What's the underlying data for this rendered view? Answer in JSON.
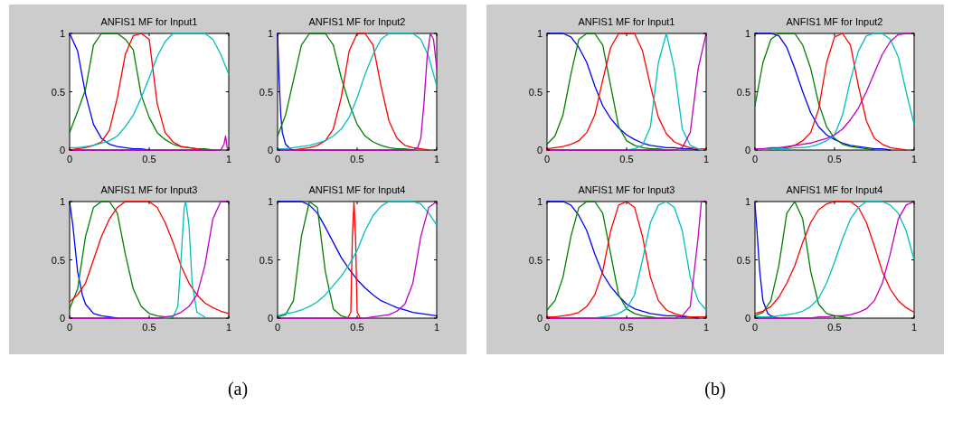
{
  "chart_data": [
    {
      "type": "line",
      "title": "ANFIS1 MF for Input1",
      "annotations": [
        "(a)"
      ],
      "xlim": [
        0,
        1
      ],
      "ylim": [
        0,
        1
      ],
      "xticks": [
        0,
        0.5,
        1
      ],
      "yticks": [
        0,
        0.5,
        1
      ],
      "x": [
        0,
        0.05,
        0.1,
        0.15,
        0.2,
        0.25,
        0.3,
        0.35,
        0.4,
        0.45,
        0.5,
        0.55,
        0.6,
        0.65,
        0.7,
        0.75,
        0.8,
        0.85,
        0.9,
        0.95,
        1
      ],
      "series": [
        {
          "color": "#0000ff",
          "values": [
            1,
            0.85,
            0.48,
            0.22,
            0.1,
            0.05,
            0.03,
            0.02,
            0.01,
            0.01,
            0,
            null,
            null,
            null,
            null,
            null,
            null,
            null,
            null,
            null,
            null
          ]
        },
        {
          "color": "#008000",
          "values": [
            0.15,
            0.33,
            0.52,
            0.9,
            1,
            1,
            1,
            0.95,
            0.86,
            0.47,
            0.28,
            0.15,
            0.09,
            0.05,
            0.03,
            0.02,
            0.01,
            0.01,
            0,
            null,
            null
          ]
        },
        {
          "color": "#ff0000",
          "values": [
            0,
            0.01,
            0.02,
            0.04,
            0.07,
            0.17,
            0.45,
            0.82,
            0.98,
            1,
            0.95,
            0.4,
            0.15,
            0.07,
            0.03,
            0.02,
            0.01,
            0,
            null,
            null,
            null
          ]
        },
        {
          "color": "#00bfbf",
          "values": [
            0.02,
            0.02,
            0.03,
            0.04,
            0.06,
            0.08,
            0.12,
            0.2,
            0.3,
            0.45,
            0.62,
            0.8,
            0.93,
            1,
            1,
            1,
            1,
            1,
            0.95,
            0.82,
            0.65
          ]
        },
        {
          "color": "#bf00bf",
          "x": [
            0,
            0.95,
            0.97,
            0.98,
            0.99,
            1
          ],
          "values": [
            0,
            0,
            0.05,
            0.12,
            0.02,
            0
          ]
        }
      ]
    },
    {
      "type": "line",
      "title": "ANFIS1 MF for Input2",
      "xlim": [
        0,
        1
      ],
      "ylim": [
        0,
        1
      ],
      "xticks": [
        0,
        0.5,
        1
      ],
      "yticks": [
        0,
        0.5,
        1
      ],
      "x": [
        0,
        0.05,
        0.1,
        0.15,
        0.2,
        0.25,
        0.3,
        0.35,
        0.4,
        0.45,
        0.5,
        0.55,
        0.6,
        0.65,
        0.7,
        0.75,
        0.8,
        0.85,
        0.9,
        0.95,
        1
      ],
      "series": [
        {
          "color": "#0000ff",
          "x": [
            0,
            0.01,
            0.02,
            0.03,
            0.05,
            0.08,
            0.1
          ],
          "values": [
            1,
            0.6,
            0.3,
            0.15,
            0.05,
            0.01,
            0
          ]
        },
        {
          "color": "#008000",
          "values": [
            0.12,
            0.3,
            0.6,
            0.9,
            1,
            1,
            1,
            0.9,
            0.62,
            0.4,
            0.22,
            0.12,
            0.07,
            0.04,
            0.02,
            0.01,
            0.01,
            0,
            null,
            null,
            null
          ]
        },
        {
          "color": "#ff0000",
          "values": [
            null,
            null,
            0,
            0.01,
            0.02,
            0.04,
            0.08,
            0.18,
            0.45,
            0.85,
            1,
            1,
            0.9,
            0.55,
            0.25,
            0.1,
            0.04,
            0.02,
            0.01,
            0,
            null
          ]
        },
        {
          "color": "#00bfbf",
          "values": [
            0.01,
            0.01,
            0.02,
            0.03,
            0.04,
            0.06,
            0.08,
            0.12,
            0.18,
            0.28,
            0.45,
            0.65,
            0.82,
            0.95,
            1,
            1,
            1,
            1,
            0.95,
            0.8,
            0.55
          ]
        },
        {
          "color": "#bf00bf",
          "x": [
            0,
            0.85,
            0.88,
            0.9,
            0.92,
            0.94,
            0.96,
            0.98,
            1
          ],
          "values": [
            0,
            0,
            0.02,
            0.1,
            0.4,
            0.8,
            1,
            0.95,
            0.7
          ]
        }
      ]
    },
    {
      "type": "line",
      "title": "ANFIS1 MF for Input3",
      "xlim": [
        0,
        1
      ],
      "ylim": [
        0,
        1
      ],
      "xticks": [
        0,
        0.5,
        1
      ],
      "yticks": [
        0,
        0.5,
        1
      ],
      "x": [
        0,
        0.05,
        0.1,
        0.15,
        0.2,
        0.25,
        0.3,
        0.35,
        0.4,
        0.45,
        0.5,
        0.55,
        0.6,
        0.65,
        0.7,
        0.75,
        0.8,
        0.85,
        0.9,
        0.95,
        1
      ],
      "series": [
        {
          "color": "#0000ff",
          "x": [
            0,
            0.02,
            0.05,
            0.08,
            0.1,
            0.15,
            0.2,
            0.25,
            0.3
          ],
          "values": [
            1,
            0.8,
            0.4,
            0.2,
            0.12,
            0.04,
            0.02,
            0.01,
            0
          ]
        },
        {
          "color": "#008000",
          "values": [
            0.08,
            0.25,
            0.7,
            0.95,
            1,
            1,
            0.9,
            0.55,
            0.25,
            0.1,
            0.04,
            0.02,
            0.01,
            0,
            null,
            null,
            null,
            null,
            null,
            null,
            null
          ]
        },
        {
          "color": "#ff0000",
          "values": [
            0.14,
            0.2,
            0.3,
            0.5,
            0.7,
            0.85,
            0.95,
            1,
            1,
            1,
            1,
            0.95,
            0.82,
            0.65,
            0.45,
            0.3,
            0.2,
            0.13,
            0.09,
            0.06,
            0.04
          ]
        },
        {
          "color": "#00bfbf",
          "x": [
            0.6,
            0.65,
            0.68,
            0.7,
            0.72,
            0.73,
            0.75,
            0.77,
            0.8,
            0.85
          ],
          "values": [
            0,
            0.01,
            0.1,
            0.5,
            0.95,
            1,
            0.8,
            0.3,
            0.05,
            0.01
          ]
        },
        {
          "color": "#bf00bf",
          "values": [
            0,
            0,
            0,
            0,
            0,
            0,
            0,
            0,
            0,
            0,
            0,
            0,
            0.01,
            0.02,
            0.05,
            0.1,
            0.2,
            0.45,
            0.85,
            1,
            1
          ]
        }
      ]
    },
    {
      "type": "line",
      "title": "ANFIS1 MF for Input4",
      "xlim": [
        0,
        1
      ],
      "ylim": [
        0,
        1
      ],
      "xticks": [
        0,
        0.5,
        1
      ],
      "yticks": [
        0,
        0.5,
        1
      ],
      "x": [
        0,
        0.05,
        0.1,
        0.15,
        0.2,
        0.25,
        0.3,
        0.35,
        0.4,
        0.45,
        0.5,
        0.55,
        0.6,
        0.65,
        0.7,
        0.75,
        0.8,
        0.85,
        0.9,
        0.95,
        1
      ],
      "series": [
        {
          "color": "#0000ff",
          "values": [
            1,
            1,
            1,
            1,
            0.97,
            0.9,
            0.78,
            0.65,
            0.52,
            0.42,
            0.33,
            0.26,
            0.2,
            0.15,
            0.12,
            0.09,
            0.07,
            0.05,
            0.04,
            0.03,
            0.02
          ]
        },
        {
          "color": "#008000",
          "values": [
            0.01,
            0.03,
            0.15,
            0.7,
            1,
            0.95,
            0.4,
            0.08,
            0.02,
            0,
            null,
            null,
            null,
            null,
            null,
            null,
            null,
            null,
            null,
            null,
            null
          ]
        },
        {
          "color": "#ff0000",
          "x": [
            0.44,
            0.46,
            0.47,
            0.48,
            0.49,
            0.5,
            0.52
          ],
          "values": [
            0,
            0.05,
            0.7,
            1,
            0.7,
            0.05,
            0
          ]
        },
        {
          "color": "#00bfbf",
          "values": [
            0.02,
            0.04,
            0.05,
            0.07,
            0.1,
            0.14,
            0.2,
            0.28,
            0.36,
            0.46,
            0.58,
            0.75,
            0.88,
            0.96,
            1,
            1,
            1,
            1,
            0.98,
            0.9,
            0.8
          ]
        },
        {
          "color": "#bf00bf",
          "values": [
            0,
            0,
            0,
            0,
            0,
            0,
            0,
            0,
            0,
            0,
            0,
            0,
            0.01,
            0.02,
            0.03,
            0.06,
            0.12,
            0.3,
            0.7,
            0.95,
            1
          ]
        }
      ]
    },
    {
      "type": "line",
      "title": "ANFIS1 MF for Input1",
      "annotations": [
        "(b)"
      ],
      "xlim": [
        0,
        1
      ],
      "ylim": [
        0,
        1
      ],
      "xticks": [
        0,
        0.5,
        1
      ],
      "yticks": [
        0,
        0.5,
        1
      ],
      "x": [
        0,
        0.05,
        0.1,
        0.15,
        0.2,
        0.25,
        0.3,
        0.35,
        0.4,
        0.45,
        0.5,
        0.55,
        0.6,
        0.65,
        0.7,
        0.75,
        0.8,
        0.85,
        0.9,
        0.95,
        1
      ],
      "series": [
        {
          "color": "#0000ff",
          "values": [
            1,
            1,
            1,
            0.97,
            0.88,
            0.75,
            0.55,
            0.38,
            0.27,
            0.19,
            0.13,
            0.09,
            0.06,
            0.04,
            0.03,
            0.02,
            0.02,
            0.01,
            0.01,
            0,
            null
          ]
        },
        {
          "color": "#008000",
          "values": [
            0.05,
            0.12,
            0.3,
            0.65,
            0.95,
            1,
            1,
            0.9,
            0.55,
            0.2,
            0.08,
            0.04,
            0.02,
            0.01,
            0.01,
            0,
            null,
            null,
            null,
            null,
            null
          ]
        },
        {
          "color": "#ff0000",
          "values": [
            0.01,
            0.02,
            0.03,
            0.05,
            0.08,
            0.15,
            0.3,
            0.6,
            0.88,
            1,
            1,
            1,
            0.85,
            0.55,
            0.28,
            0.14,
            0.07,
            0.04,
            0.02,
            0.01,
            0.01
          ]
        },
        {
          "color": "#00bfbf",
          "values": [
            null,
            null,
            null,
            null,
            null,
            null,
            null,
            null,
            null,
            null,
            0,
            0.01,
            0.04,
            0.2,
            0.75,
            1,
            0.7,
            0.18,
            0.04,
            0.01,
            0
          ]
        },
        {
          "color": "#bf00bf",
          "values": [
            0,
            0,
            0,
            0,
            0,
            0,
            0,
            0,
            0,
            0,
            0,
            0,
            0,
            0,
            0,
            0,
            0,
            0.02,
            0.15,
            0.7,
            1
          ]
        }
      ]
    },
    {
      "type": "line",
      "title": "ANFIS1 MF for Input2",
      "xlim": [
        0,
        1
      ],
      "ylim": [
        0,
        1
      ],
      "xticks": [
        0,
        0.5,
        1
      ],
      "yticks": [
        0,
        0.5,
        1
      ],
      "x": [
        0,
        0.05,
        0.1,
        0.15,
        0.2,
        0.25,
        0.3,
        0.35,
        0.4,
        0.45,
        0.5,
        0.55,
        0.6,
        0.65,
        0.7,
        0.75,
        0.8,
        0.85,
        0.9,
        0.95,
        1
      ],
      "series": [
        {
          "color": "#0000ff",
          "values": [
            1,
            1,
            1,
            0.98,
            0.88,
            0.7,
            0.5,
            0.32,
            0.2,
            0.13,
            0.09,
            0.06,
            0.04,
            0.03,
            0.02,
            0.01,
            0.01,
            0,
            null,
            null,
            null
          ]
        },
        {
          "color": "#008000",
          "values": [
            0.38,
            0.75,
            0.95,
            1,
            1,
            1,
            0.9,
            0.7,
            0.4,
            0.2,
            0.1,
            0.05,
            0.03,
            0.02,
            0.01,
            0,
            null,
            null,
            null,
            null,
            null
          ]
        },
        {
          "color": "#ff0000",
          "values": [
            null,
            0,
            0.01,
            0.01,
            0.02,
            0.04,
            0.08,
            0.15,
            0.35,
            0.75,
            0.97,
            1,
            0.9,
            0.55,
            0.25,
            0.1,
            0.05,
            0.02,
            0.01,
            0,
            null
          ]
        },
        {
          "color": "#00bfbf",
          "values": [
            null,
            0,
            0.01,
            0.01,
            0.01,
            0.02,
            0.02,
            0.03,
            0.05,
            0.08,
            0.13,
            0.3,
            0.6,
            0.85,
            0.98,
            1,
            1,
            0.95,
            0.8,
            0.5,
            0.22
          ]
        },
        {
          "color": "#bf00bf",
          "values": [
            0.01,
            0.01,
            0.02,
            0.02,
            0.03,
            0.04,
            0.05,
            0.06,
            0.08,
            0.1,
            0.13,
            0.18,
            0.26,
            0.36,
            0.5,
            0.66,
            0.82,
            0.93,
            0.99,
            1,
            1
          ]
        }
      ]
    },
    {
      "type": "line",
      "title": "ANFIS1 MF for Input3",
      "xlim": [
        0,
        1
      ],
      "ylim": [
        0,
        1
      ],
      "xticks": [
        0,
        0.5,
        1
      ],
      "yticks": [
        0,
        0.5,
        1
      ],
      "x": [
        0,
        0.05,
        0.1,
        0.15,
        0.2,
        0.25,
        0.3,
        0.35,
        0.4,
        0.45,
        0.5,
        0.55,
        0.6,
        0.65,
        0.7,
        0.75,
        0.8,
        0.85,
        0.9,
        0.95,
        1
      ],
      "series": [
        {
          "color": "#0000ff",
          "values": [
            1,
            1,
            1,
            0.97,
            0.88,
            0.75,
            0.55,
            0.38,
            0.27,
            0.19,
            0.12,
            0.08,
            0.06,
            0.04,
            0.03,
            0.02,
            0.02,
            0.01,
            0.01,
            0,
            null
          ]
        },
        {
          "color": "#008000",
          "values": [
            0.07,
            0.15,
            0.35,
            0.7,
            0.95,
            1,
            1,
            0.9,
            0.55,
            0.2,
            0.08,
            0.04,
            0.02,
            0.01,
            0,
            null,
            null,
            null,
            null,
            null,
            null
          ]
        },
        {
          "color": "#ff0000",
          "values": [
            0.01,
            0.01,
            0.02,
            0.03,
            0.05,
            0.1,
            0.2,
            0.4,
            0.75,
            0.97,
            1,
            0.95,
            0.7,
            0.35,
            0.15,
            0.07,
            0.04,
            0.02,
            0.01,
            0.01,
            0.01
          ]
        },
        {
          "color": "#00bfbf",
          "values": [
            null,
            null,
            null,
            null,
            null,
            null,
            0,
            0.01,
            0.02,
            0.04,
            0.08,
            0.2,
            0.5,
            0.82,
            0.97,
            1,
            0.95,
            0.75,
            0.35,
            0.15,
            0.07
          ]
        },
        {
          "color": "#bf00bf",
          "x": [
            0,
            0.8,
            0.85,
            0.9,
            0.95,
            0.97,
            1
          ],
          "values": [
            0,
            0,
            0.02,
            0.1,
            0.7,
            1,
            1
          ]
        }
      ]
    },
    {
      "type": "line",
      "title": "ANFIS1 MF for Input4",
      "xlim": [
        0,
        1
      ],
      "ylim": [
        0,
        1
      ],
      "xticks": [
        0,
        0.5,
        1
      ],
      "yticks": [
        0,
        0.5,
        1
      ],
      "x": [
        0,
        0.05,
        0.1,
        0.15,
        0.2,
        0.25,
        0.3,
        0.35,
        0.4,
        0.45,
        0.5,
        0.55,
        0.6,
        0.65,
        0.7,
        0.75,
        0.8,
        0.85,
        0.9,
        0.95,
        1
      ],
      "series": [
        {
          "color": "#0000ff",
          "x": [
            0,
            0.01,
            0.03,
            0.05,
            0.08,
            0.1,
            0.15
          ],
          "values": [
            0.97,
            0.8,
            0.4,
            0.15,
            0.04,
            0.02,
            0
          ]
        },
        {
          "color": "#008000",
          "values": [
            0.02,
            0.05,
            0.15,
            0.45,
            0.9,
            1,
            0.85,
            0.4,
            0.12,
            0.04,
            0.02,
            0.01,
            0,
            null,
            null,
            null,
            null,
            null,
            null,
            null,
            null
          ]
        },
        {
          "color": "#ff0000",
          "values": [
            0.04,
            0.06,
            0.1,
            0.18,
            0.3,
            0.45,
            0.65,
            0.82,
            0.93,
            0.98,
            1,
            1,
            1,
            0.95,
            0.82,
            0.62,
            0.4,
            0.25,
            0.15,
            0.09,
            0.05
          ]
        },
        {
          "color": "#00bfbf",
          "values": [
            0.01,
            0.01,
            0.01,
            0.02,
            0.03,
            0.04,
            0.06,
            0.1,
            0.17,
            0.3,
            0.48,
            0.68,
            0.85,
            0.95,
            1,
            1,
            1,
            0.97,
            0.9,
            0.75,
            0.5
          ]
        },
        {
          "color": "#bf00bf",
          "values": [
            0,
            0,
            0,
            0,
            0,
            0,
            0,
            0,
            0.01,
            0.01,
            0.02,
            0.02,
            0.03,
            0.05,
            0.08,
            0.15,
            0.3,
            0.55,
            0.85,
            0.97,
            1
          ]
        }
      ]
    }
  ]
}
